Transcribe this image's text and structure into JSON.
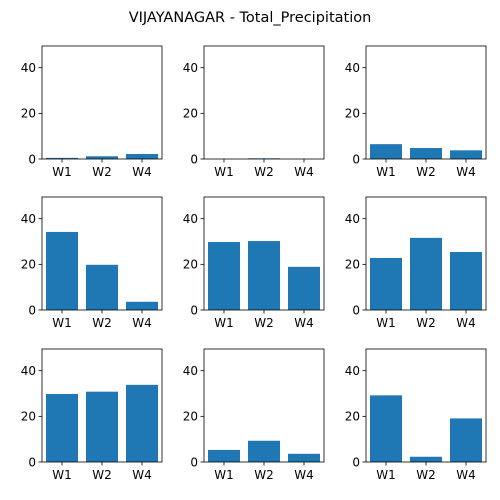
{
  "figure": {
    "title": "VIJAYANAGAR - Total_Precipitation",
    "bar_color": "#1f77b4"
  },
  "chart_data": [
    {
      "type": "bar",
      "categories": [
        "W1",
        "W2",
        "W4"
      ],
      "values": [
        0.5,
        1.2,
        2.2
      ],
      "ylim": [
        0,
        49.5
      ],
      "yticks": [
        0,
        20,
        40
      ]
    },
    {
      "type": "bar",
      "categories": [
        "W1",
        "W2",
        "W4"
      ],
      "values": [
        0.0,
        0.3,
        0.0
      ],
      "ylim": [
        0,
        49.5
      ],
      "yticks": [
        0,
        20,
        40
      ]
    },
    {
      "type": "bar",
      "categories": [
        "W1",
        "W2",
        "W4"
      ],
      "values": [
        6.5,
        4.8,
        3.8
      ],
      "ylim": [
        0,
        49.5
      ],
      "yticks": [
        0,
        20,
        40
      ]
    },
    {
      "type": "bar",
      "categories": [
        "W1",
        "W2",
        "W4"
      ],
      "values": [
        34.2,
        19.8,
        3.6
      ],
      "ylim": [
        0,
        49.5
      ],
      "yticks": [
        0,
        20,
        40
      ]
    },
    {
      "type": "bar",
      "categories": [
        "W1",
        "W2",
        "W4"
      ],
      "values": [
        29.8,
        30.2,
        18.9
      ],
      "ylim": [
        0,
        49.5
      ],
      "yticks": [
        0,
        20,
        40
      ]
    },
    {
      "type": "bar",
      "categories": [
        "W1",
        "W2",
        "W4"
      ],
      "values": [
        22.8,
        31.6,
        25.4
      ],
      "ylim": [
        0,
        49.5
      ],
      "yticks": [
        0,
        20,
        40
      ]
    },
    {
      "type": "bar",
      "categories": [
        "W1",
        "W2",
        "W4"
      ],
      "values": [
        29.8,
        30.8,
        33.8
      ],
      "ylim": [
        0,
        49.5
      ],
      "yticks": [
        0,
        20,
        40
      ]
    },
    {
      "type": "bar",
      "categories": [
        "W1",
        "W2",
        "W4"
      ],
      "values": [
        5.3,
        9.3,
        3.6
      ],
      "ylim": [
        0,
        49.5
      ],
      "yticks": [
        0,
        20,
        40
      ]
    },
    {
      "type": "bar",
      "categories": [
        "W1",
        "W2",
        "W4"
      ],
      "values": [
        29.2,
        2.3,
        19.1
      ],
      "ylim": [
        0,
        49.5
      ],
      "yticks": [
        0,
        20,
        40
      ]
    }
  ]
}
